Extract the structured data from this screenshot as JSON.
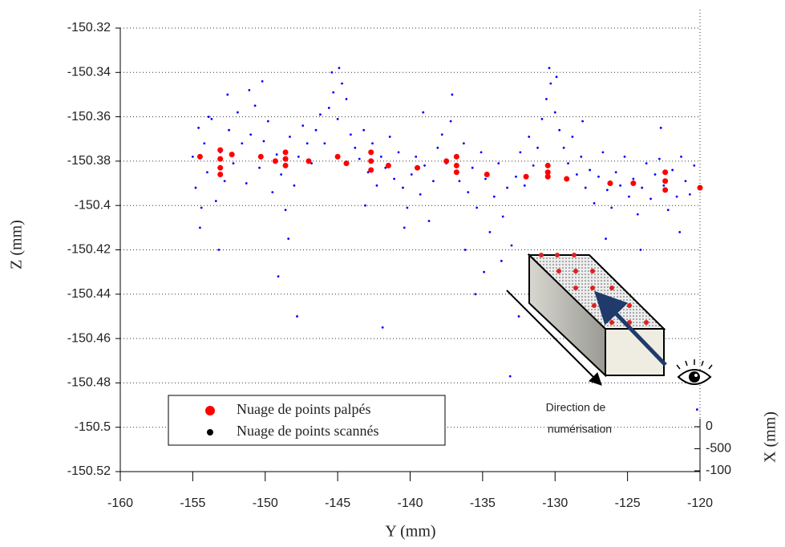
{
  "chart_data": {
    "type": "scatter",
    "x_label": "Y (mm)",
    "y_label": "Z (mm)",
    "xlim": [
      -160,
      -120
    ],
    "xticks": [
      -160,
      -155,
      -150,
      -145,
      -140,
      -135,
      -130,
      -125,
      -120
    ],
    "ylim": [
      -150.52,
      -150.32
    ],
    "yticks": [
      -150.32,
      -150.34,
      -150.36,
      -150.38,
      -150.4,
      -150.42,
      -150.44,
      -150.46,
      -150.48,
      -150.5,
      -150.52
    ],
    "grid": true,
    "series": [
      {
        "name": "Nuage de points palpés",
        "color": "#ff0000",
        "legend_color": "#ff0000",
        "size": 3.5,
        "x": [
          -154.5,
          -153.1,
          -153.1,
          -153.1,
          -153.1,
          -152.3,
          -150.3,
          -149.3,
          -148.6,
          -148.6,
          -148.6,
          -147.0,
          -145.0,
          -144.4,
          -142.7,
          -142.7,
          -142.7,
          -141.5,
          -139.5,
          -137.5,
          -136.8,
          -136.8,
          -136.8,
          -134.7,
          -132.0,
          -130.5,
          -130.5,
          -130.5,
          -129.2,
          -126.2,
          -124.6,
          -122.4,
          -122.4,
          -122.4,
          -120.0
        ],
        "values": [
          -150.378,
          -150.375,
          -150.379,
          -150.383,
          -150.386,
          -150.377,
          -150.378,
          -150.38,
          -150.376,
          -150.379,
          -150.382,
          -150.38,
          -150.378,
          -150.381,
          -150.376,
          -150.38,
          -150.384,
          -150.382,
          -150.383,
          -150.38,
          -150.378,
          -150.382,
          -150.385,
          -150.386,
          -150.387,
          -150.382,
          -150.385,
          -150.387,
          -150.388,
          -150.39,
          -150.39,
          -150.385,
          -150.389,
          -150.393,
          -150.392
        ]
      },
      {
        "name": "Nuage de points scannés",
        "color": "#0000ff",
        "legend_color": "#000000",
        "size": 1.4,
        "x": [
          -155,
          -154.8,
          -154.6,
          -154.4,
          -154.2,
          -154,
          -153.7,
          -153.4,
          -153.1,
          -152.8,
          -152.5,
          -152.2,
          -151.9,
          -151.6,
          -151.3,
          -151,
          -150.7,
          -150.4,
          -150.1,
          -149.8,
          -149.5,
          -149.2,
          -148.9,
          -148.6,
          -148.3,
          -148,
          -147.7,
          -147.4,
          -147.1,
          -146.8,
          -146.5,
          -146.2,
          -145.9,
          -145.6,
          -145.3,
          -145,
          -144.7,
          -144.4,
          -144.1,
          -143.8,
          -143.5,
          -143.2,
          -142.9,
          -142.6,
          -142.3,
          -142,
          -141.7,
          -141.4,
          -141.1,
          -140.8,
          -140.5,
          -140.2,
          -139.9,
          -139.6,
          -139.3,
          -139,
          -138.7,
          -138.4,
          -138.1,
          -137.8,
          -137.5,
          -137.2,
          -136.9,
          -136.6,
          -136.3,
          -136,
          -135.7,
          -135.4,
          -135.1,
          -134.8,
          -134.5,
          -134.2,
          -133.9,
          -133.6,
          -133.3,
          -133,
          -132.7,
          -132.4,
          -132.1,
          -131.8,
          -131.5,
          -131.2,
          -130.9,
          -130.6,
          -130.3,
          -130,
          -129.7,
          -129.4,
          -129.1,
          -128.8,
          -128.5,
          -128.2,
          -127.9,
          -127.6,
          -127.3,
          -127,
          -126.7,
          -126.4,
          -126.1,
          -125.8,
          -125.5,
          -125.2,
          -124.9,
          -124.6,
          -124.3,
          -124,
          -123.7,
          -123.4,
          -123.1,
          -122.8,
          -122.5,
          -122.2,
          -121.9,
          -121.6,
          -121.3,
          -121,
          -120.7,
          -120.4,
          -154.5,
          -153.9,
          -153.2,
          -152.6,
          -151.1,
          -150.2,
          -149.1,
          -148.4,
          -147.8,
          -145.4,
          -144.9,
          -143.1,
          -141.9,
          -140.4,
          -139.1,
          -137.1,
          -136.2,
          -135.5,
          -134.9,
          -133.7,
          -133.1,
          -132.5,
          -130.4,
          -129.9,
          -128.1,
          -126.5,
          -124.1,
          -122.7,
          -121.4,
          -120.2
        ],
        "values": [
          -150.378,
          -150.392,
          -150.365,
          -150.401,
          -150.372,
          -150.385,
          -150.361,
          -150.398,
          -150.376,
          -150.389,
          -150.366,
          -150.381,
          -150.358,
          -150.372,
          -150.39,
          -150.368,
          -150.355,
          -150.383,
          -150.371,
          -150.362,
          -150.394,
          -150.377,
          -150.386,
          -150.402,
          -150.369,
          -150.391,
          -150.378,
          -150.364,
          -150.372,
          -150.381,
          -150.366,
          -150.359,
          -150.372,
          -150.356,
          -150.349,
          -150.361,
          -150.345,
          -150.352,
          -150.368,
          -150.374,
          -150.379,
          -150.366,
          -150.385,
          -150.372,
          -150.391,
          -150.378,
          -150.383,
          -150.369,
          -150.388,
          -150.376,
          -150.392,
          -150.401,
          -150.386,
          -150.378,
          -150.395,
          -150.382,
          -150.407,
          -150.389,
          -150.374,
          -150.368,
          -150.381,
          -150.362,
          -150.378,
          -150.389,
          -150.372,
          -150.394,
          -150.383,
          -150.401,
          -150.376,
          -150.388,
          -150.412,
          -150.396,
          -150.381,
          -150.405,
          -150.392,
          -150.418,
          -150.387,
          -150.376,
          -150.391,
          -150.369,
          -150.382,
          -150.374,
          -150.361,
          -150.352,
          -150.345,
          -150.358,
          -150.366,
          -150.374,
          -150.381,
          -150.369,
          -150.386,
          -150.378,
          -150.392,
          -150.384,
          -150.399,
          -150.387,
          -150.376,
          -150.393,
          -150.401,
          -150.385,
          -150.391,
          -150.378,
          -150.396,
          -150.388,
          -150.404,
          -150.392,
          -150.381,
          -150.397,
          -150.386,
          -150.379,
          -150.391,
          -150.402,
          -150.384,
          -150.396,
          -150.378,
          -150.389,
          -150.395,
          -150.382,
          -150.41,
          -150.36,
          -150.42,
          -150.35,
          -150.348,
          -150.344,
          -150.432,
          -150.415,
          -150.45,
          -150.34,
          -150.338,
          -150.4,
          -150.455,
          -150.41,
          -150.358,
          -150.35,
          -150.42,
          -150.44,
          -150.43,
          -150.425,
          -150.477,
          -150.45,
          -150.338,
          -150.342,
          -150.362,
          -150.415,
          -150.42,
          -150.365,
          -150.412,
          -150.492
        ]
      }
    ],
    "x2_label": "X (mm)",
    "x2_tick_labels": [
      "0",
      "-500",
      "-100"
    ],
    "annotation": [
      "Direction de",
      "numérisation"
    ]
  }
}
